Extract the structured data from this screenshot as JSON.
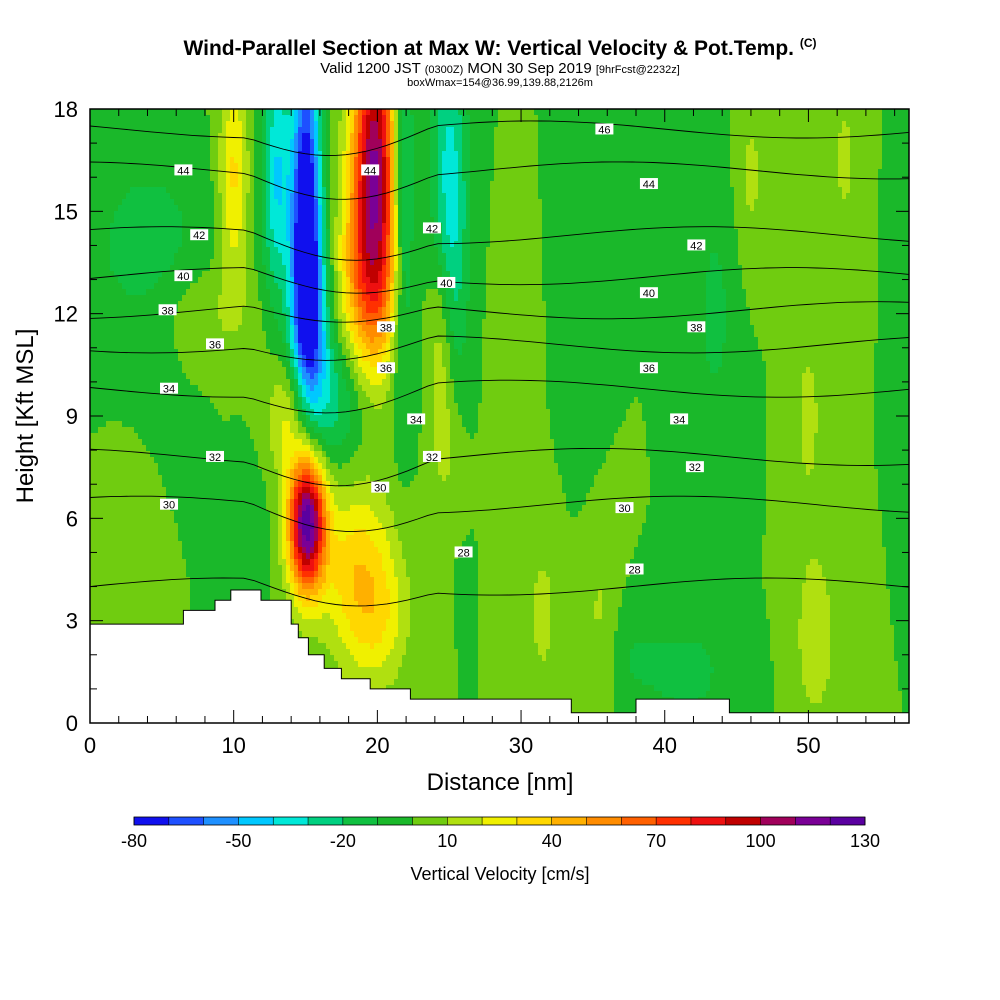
{
  "header": {
    "title": "Wind-Parallel Section at Max W: Vertical Velocity & Pot.Temp.",
    "copyright": "(C)",
    "valid_prefix": "Valid 1200 JST",
    "valid_utc": "(0300Z)",
    "valid_date": "MON 30 Sep 2019",
    "forecast": "[9hrFcst@2232z]",
    "boxinfo": "boxWmax=154@36.99,139.88,2126m"
  },
  "chart_data": {
    "type": "heatmap",
    "xlabel": "Distance [nm]",
    "ylabel": "Height [Kft MSL]",
    "xlim": [
      0,
      57
    ],
    "ylim": [
      0,
      18
    ],
    "x_ticks": [
      0,
      10,
      20,
      30,
      40,
      50
    ],
    "x_tick_labels": [
      "0",
      "10",
      "20",
      "30",
      "40",
      "50"
    ],
    "y_ticks": [
      0,
      3,
      6,
      9,
      12,
      15,
      18
    ],
    "y_tick_labels": [
      "0",
      "3",
      "6",
      "9",
      "12",
      "15",
      "18"
    ],
    "colorbar": {
      "label": "Vertical Velocity [cm/s]",
      "min": -80,
      "max": 130,
      "step": 10,
      "tick_values": [
        -80,
        -50,
        -20,
        10,
        40,
        70,
        100,
        130
      ],
      "tick_labels": [
        "-80",
        "-50",
        "-20",
        "10",
        "40",
        "70",
        "100",
        "130"
      ],
      "colors": [
        "#1010ee",
        "#1e50ff",
        "#1e90ff",
        "#00c8ff",
        "#00e8d8",
        "#00d080",
        "#10c040",
        "#1ab82a",
        "#70cc10",
        "#b0e010",
        "#f0f000",
        "#ffd700",
        "#ffb000",
        "#ff8c00",
        "#ff6000",
        "#ff3000",
        "#ee1010",
        "#c00000",
        "#a0005a",
        "#7a0096",
        "#5a00a0"
      ]
    },
    "terrain": [
      [
        0,
        0
      ],
      [
        0,
        2.9
      ],
      [
        6.5,
        2.9
      ],
      [
        6.5,
        3.3
      ],
      [
        8.7,
        3.3
      ],
      [
        8.7,
        3.6
      ],
      [
        9.8,
        3.6
      ],
      [
        9.8,
        3.9
      ],
      [
        11.9,
        3.9
      ],
      [
        11.9,
        3.6
      ],
      [
        14,
        3.6
      ],
      [
        14,
        2.9
      ],
      [
        14.5,
        2.9
      ],
      [
        14.5,
        2.5
      ],
      [
        15.2,
        2.5
      ],
      [
        15.2,
        2.0
      ],
      [
        16.3,
        2.0
      ],
      [
        16.3,
        1.6
      ],
      [
        17.5,
        1.6
      ],
      [
        17.5,
        1.3
      ],
      [
        19.5,
        1.3
      ],
      [
        19.5,
        1.0
      ],
      [
        21,
        1.0
      ],
      [
        21,
        1.0
      ],
      [
        22.3,
        1.0
      ],
      [
        22.3,
        0.7
      ],
      [
        33.5,
        0.7
      ],
      [
        33.5,
        0.3
      ],
      [
        38,
        0.3
      ],
      [
        38,
        0.7
      ],
      [
        44.5,
        0.7
      ],
      [
        44.5,
        0.3
      ],
      [
        57,
        0.3
      ],
      [
        57,
        0
      ]
    ],
    "theta_contours": [
      {
        "value": 28,
        "label": "28",
        "y0": 4.0,
        "label_pos": [
          26.0,
          5.0
        ]
      },
      {
        "value": 28,
        "label": "28",
        "y0": 4.3,
        "label_pos": [
          37.9,
          4.5
        ]
      },
      {
        "value": 30,
        "label": "30",
        "y0": 6.4,
        "label_pos": [
          5.5,
          6.4
        ]
      },
      {
        "value": 30,
        "label": "30",
        "y0": 6.4,
        "label_pos": [
          20.2,
          6.9
        ]
      },
      {
        "value": 30,
        "label": "30",
        "y0": 6.4,
        "label_pos": [
          37.2,
          6.3
        ]
      },
      {
        "value": 32,
        "label": "32",
        "y0": 7.8,
        "label_pos": [
          8.7,
          7.8
        ]
      },
      {
        "value": 32,
        "label": "32",
        "y0": 7.8,
        "label_pos": [
          23.8,
          7.8
        ]
      },
      {
        "value": 32,
        "label": "32",
        "y0": 7.8,
        "label_pos": [
          42.1,
          7.5
        ]
      },
      {
        "value": 34,
        "label": "34",
        "y0": 9.8,
        "label_pos": [
          5.5,
          9.8
        ]
      },
      {
        "value": 34,
        "label": "34",
        "y0": 9.8,
        "label_pos": [
          22.7,
          8.9
        ]
      },
      {
        "value": 34,
        "label": "34",
        "y0": 9.8,
        "label_pos": [
          41.0,
          8.9
        ]
      },
      {
        "value": 36,
        "label": "36",
        "y0": 11.1,
        "label_pos": [
          8.7,
          11.1
        ]
      },
      {
        "value": 36,
        "label": "36",
        "y0": 11.1,
        "label_pos": [
          20.6,
          10.4
        ]
      },
      {
        "value": 36,
        "label": "36",
        "y0": 11.1,
        "label_pos": [
          38.9,
          10.4
        ]
      },
      {
        "value": 38,
        "label": "38",
        "y0": 12.1,
        "label_pos": [
          5.4,
          12.1
        ]
      },
      {
        "value": 38,
        "label": "38",
        "y0": 12.1,
        "label_pos": [
          20.6,
          11.6
        ]
      },
      {
        "value": 38,
        "label": "38",
        "y0": 12.1,
        "label_pos": [
          42.2,
          11.6
        ]
      },
      {
        "value": 40,
        "label": "40",
        "y0": 13.1,
        "label_pos": [
          6.5,
          13.1
        ]
      },
      {
        "value": 40,
        "label": "40",
        "y0": 13.1,
        "label_pos": [
          24.8,
          12.9
        ]
      },
      {
        "value": 40,
        "label": "40",
        "y0": 13.1,
        "label_pos": [
          38.9,
          12.6
        ]
      },
      {
        "value": 42,
        "label": "42",
        "y0": 14.3,
        "label_pos": [
          7.6,
          14.3
        ]
      },
      {
        "value": 42,
        "label": "42",
        "y0": 14.3,
        "label_pos": [
          23.8,
          14.5
        ]
      },
      {
        "value": 42,
        "label": "42",
        "y0": 14.3,
        "label_pos": [
          42.2,
          14.0
        ]
      },
      {
        "value": 44,
        "label": "44",
        "y0": 16.2,
        "label_pos": [
          6.5,
          16.2
        ]
      },
      {
        "value": 44,
        "label": "44",
        "y0": 16.2,
        "label_pos": [
          19.5,
          16.2
        ]
      },
      {
        "value": 44,
        "label": "44",
        "y0": 16.2,
        "label_pos": [
          38.9,
          15.8
        ]
      },
      {
        "value": 46,
        "label": "46",
        "y0": 17.4,
        "label_pos": [
          35.8,
          17.4
        ]
      }
    ],
    "velocity_features": [
      {
        "x": 15.1,
        "y": 5.9,
        "sx": 0.9,
        "sy": 1.4,
        "value": 130
      },
      {
        "x": 14.0,
        "y": 9.0,
        "sx": 1.2,
        "sy": 1.2,
        "value": 25
      },
      {
        "x": 18.6,
        "y": 4.5,
        "sx": 1.8,
        "sy": 1.8,
        "value": 35
      },
      {
        "x": 20.0,
        "y": 3.0,
        "sx": 1.5,
        "sy": 1.4,
        "value": 22
      },
      {
        "x": 19.8,
        "y": 16.6,
        "sx": 1.1,
        "sy": 3.0,
        "value": 105
      },
      {
        "x": 19.5,
        "y": 13.0,
        "sx": 1.5,
        "sy": 2.0,
        "value": 50
      },
      {
        "x": 15.0,
        "y": 15.0,
        "sx": 0.7,
        "sy": 3.5,
        "value": -85
      },
      {
        "x": 15.3,
        "y": 11.6,
        "sx": 0.9,
        "sy": 2.5,
        "value": -55
      },
      {
        "x": 13.0,
        "y": 16.0,
        "sx": 0.7,
        "sy": 2.5,
        "value": -40
      },
      {
        "x": 21.7,
        "y": 15.0,
        "sx": 0.6,
        "sy": 3.5,
        "value": -45
      },
      {
        "x": 25.0,
        "y": 15.0,
        "sx": 0.9,
        "sy": 3.5,
        "value": -40
      },
      {
        "x": 24.5,
        "y": 11.5,
        "sx": 0.6,
        "sy": 2.5,
        "value": 32
      },
      {
        "x": 17.0,
        "y": 9.5,
        "sx": 1.5,
        "sy": 1.5,
        "value": -25
      },
      {
        "x": 10.0,
        "y": 16.0,
        "sx": 0.7,
        "sy": 2.2,
        "value": 32
      },
      {
        "x": 8.5,
        "y": 12.0,
        "sx": 2.5,
        "sy": 1.0,
        "value": 10
      },
      {
        "x": 4.0,
        "y": 14.0,
        "sx": 3.0,
        "sy": 2.0,
        "value": -15
      },
      {
        "x": 2.0,
        "y": 5.0,
        "sx": 1.0,
        "sy": 1.5,
        "value": 10
      },
      {
        "x": 11.0,
        "y": 5.5,
        "sx": 0.8,
        "sy": 1.5,
        "value": -10
      },
      {
        "x": 31.5,
        "y": 3.2,
        "sx": 1.0,
        "sy": 2.2,
        "value": 12
      },
      {
        "x": 35.5,
        "y": 3.0,
        "sx": 1.0,
        "sy": 2.0,
        "value": 12
      },
      {
        "x": 37.5,
        "y": 2.0,
        "sx": 1.5,
        "sy": 1.2,
        "value": -10
      },
      {
        "x": 41.5,
        "y": 1.5,
        "sx": 2.0,
        "sy": 1.0,
        "value": -15
      },
      {
        "x": 50.5,
        "y": 2.5,
        "sx": 1.0,
        "sy": 1.8,
        "value": 18
      },
      {
        "x": 50.0,
        "y": 9.0,
        "sx": 0.9,
        "sy": 2.5,
        "value": 12
      },
      {
        "x": 46.0,
        "y": 16.0,
        "sx": 0.8,
        "sy": 2.0,
        "value": 12
      },
      {
        "x": 52.5,
        "y": 16.5,
        "sx": 0.8,
        "sy": 1.8,
        "value": 12
      },
      {
        "x": 56.5,
        "y": 15.5,
        "sx": 0.5,
        "sy": 2.5,
        "value": -10
      },
      {
        "x": 34.0,
        "y": 12.0,
        "sx": 1.0,
        "sy": 3.0,
        "value": -10
      },
      {
        "x": 29.5,
        "y": 10.0,
        "sx": 1.0,
        "sy": 2.5,
        "value": 8
      },
      {
        "x": 25.0,
        "y": 8.0,
        "sx": 0.8,
        "sy": 1.2,
        "value": 10
      },
      {
        "x": 43.5,
        "y": 12.0,
        "sx": 1.2,
        "sy": 3.0,
        "value": -12
      }
    ],
    "velocity_background": 0
  }
}
